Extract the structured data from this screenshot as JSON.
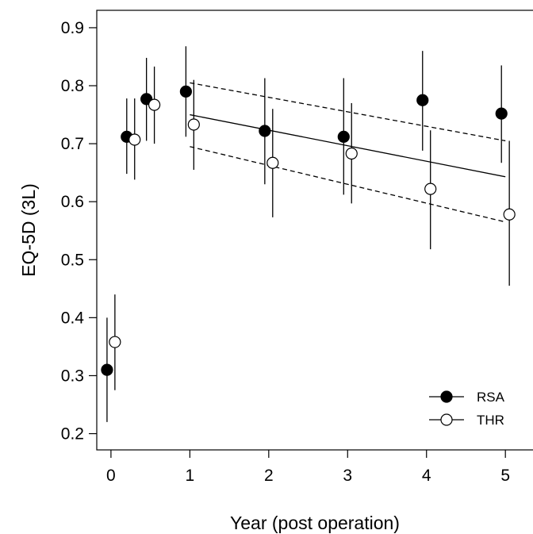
{
  "chart_data": {
    "type": "scatter",
    "xlabel": "Year (post operation)",
    "ylabel": "EQ-5D (3L)",
    "xlim": [
      -0.18,
      5.35
    ],
    "ylim": [
      0.172,
      0.93
    ],
    "xticks": [
      0,
      1,
      2,
      3,
      4,
      5
    ],
    "yticks": [
      0.2,
      0.3,
      0.4,
      0.5,
      0.6,
      0.7,
      0.8,
      0.9
    ],
    "ytick_labels": [
      "0.2",
      "0.3",
      "0.4",
      "0.5",
      "0.6",
      "0.7",
      "0.8",
      "0.9"
    ],
    "grid": false,
    "legend_position": "bottom-right",
    "series": [
      {
        "name": "RSA",
        "marker": "filled-circle",
        "color": "#000000",
        "x": [
          -0.05,
          0.2,
          0.45,
          0.95,
          1.95,
          2.95,
          3.95,
          4.95
        ],
        "y": [
          0.31,
          0.712,
          0.777,
          0.79,
          0.722,
          0.712,
          0.775,
          0.752
        ],
        "lower": [
          0.22,
          0.648,
          0.705,
          0.712,
          0.63,
          0.612,
          0.688,
          0.667
        ],
        "upper": [
          0.4,
          0.778,
          0.848,
          0.868,
          0.813,
          0.813,
          0.86,
          0.835
        ]
      },
      {
        "name": "THR",
        "marker": "open-circle",
        "color": "#000000",
        "x": [
          0.05,
          0.3,
          0.55,
          1.05,
          2.05,
          3.05,
          4.05,
          5.05
        ],
        "y": [
          0.358,
          0.707,
          0.767,
          0.733,
          0.667,
          0.683,
          0.622,
          0.578
        ],
        "lower": [
          0.275,
          0.638,
          0.7,
          0.655,
          0.573,
          0.597,
          0.518,
          0.455
        ],
        "upper": [
          0.44,
          0.778,
          0.833,
          0.81,
          0.76,
          0.77,
          0.723,
          0.705
        ]
      }
    ],
    "trend": {
      "x": [
        1.0,
        5.0
      ],
      "fit": [
        0.75,
        0.643
      ],
      "ci_upper": [
        0.805,
        0.705
      ],
      "ci_lower": [
        0.695,
        0.565
      ]
    }
  }
}
